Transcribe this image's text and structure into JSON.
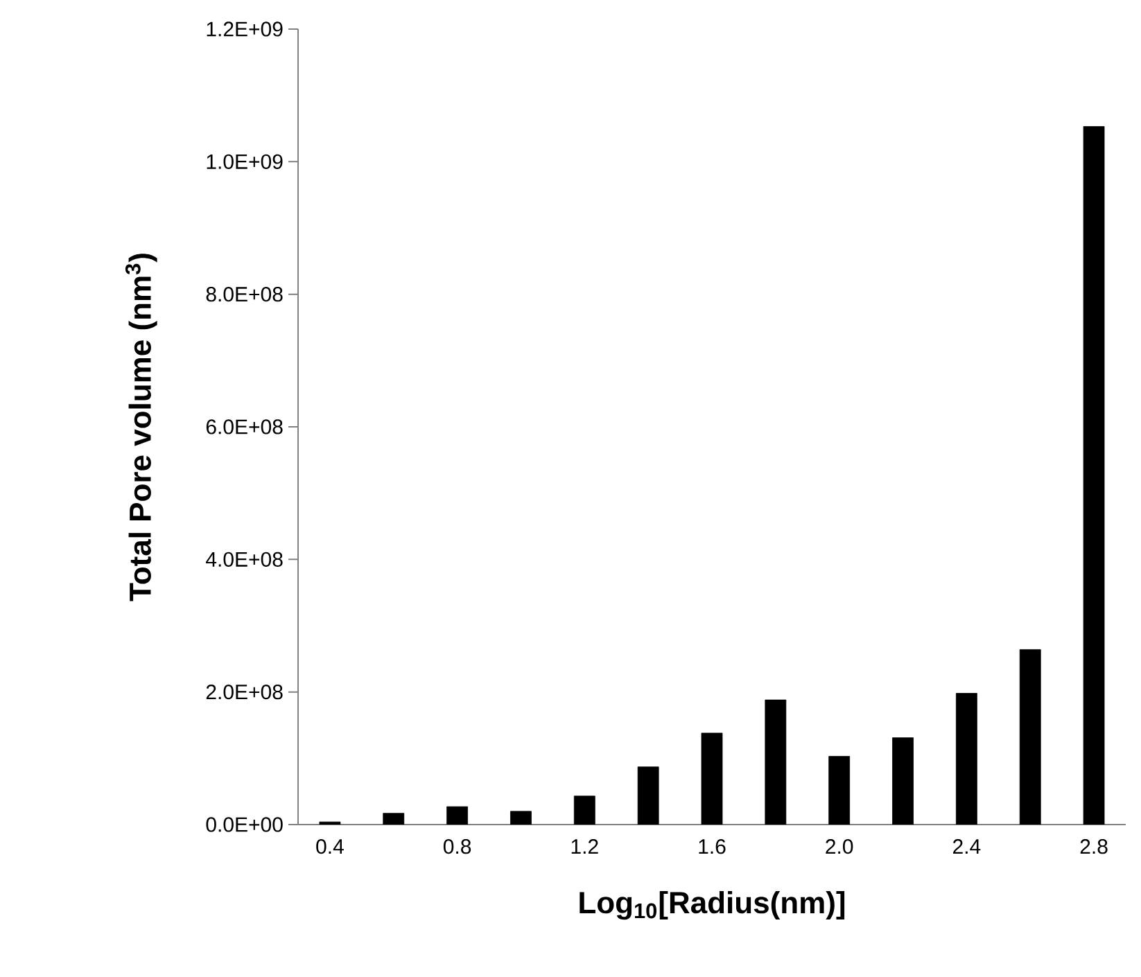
{
  "chart_data": {
    "type": "bar",
    "xlabel": "Log$_{10}$[Radius(nm)]",
    "ylabel": "Total Pore volume (nm$^{3}$)",
    "categories": [
      "0.4",
      null,
      "0.8",
      null,
      "1.2",
      null,
      "1.6",
      null,
      "2.0",
      null,
      "2.4",
      null,
      "2.8"
    ],
    "values": [
      4000000,
      17000000,
      27000000,
      20000000,
      43000000,
      87000000,
      138000000,
      188000000,
      103000000,
      131000000,
      198000000,
      264000000,
      1053000000
    ],
    "color": "#000000",
    "ylim": [
      0,
      1200000000
    ],
    "yticks": [
      {
        "value": 0,
        "label": "0.0E+00"
      },
      {
        "value": 200000000,
        "label": "2.0E+08"
      },
      {
        "value": 400000000,
        "label": "4.0E+08"
      },
      {
        "value": 600000000,
        "label": "6.0E+08"
      },
      {
        "value": 800000000,
        "label": "8.0E+08"
      },
      {
        "value": 1000000000,
        "label": "1.0E+09"
      },
      {
        "value": 1200000000,
        "label": "1.2E+09"
      }
    ],
    "grid": false
  }
}
